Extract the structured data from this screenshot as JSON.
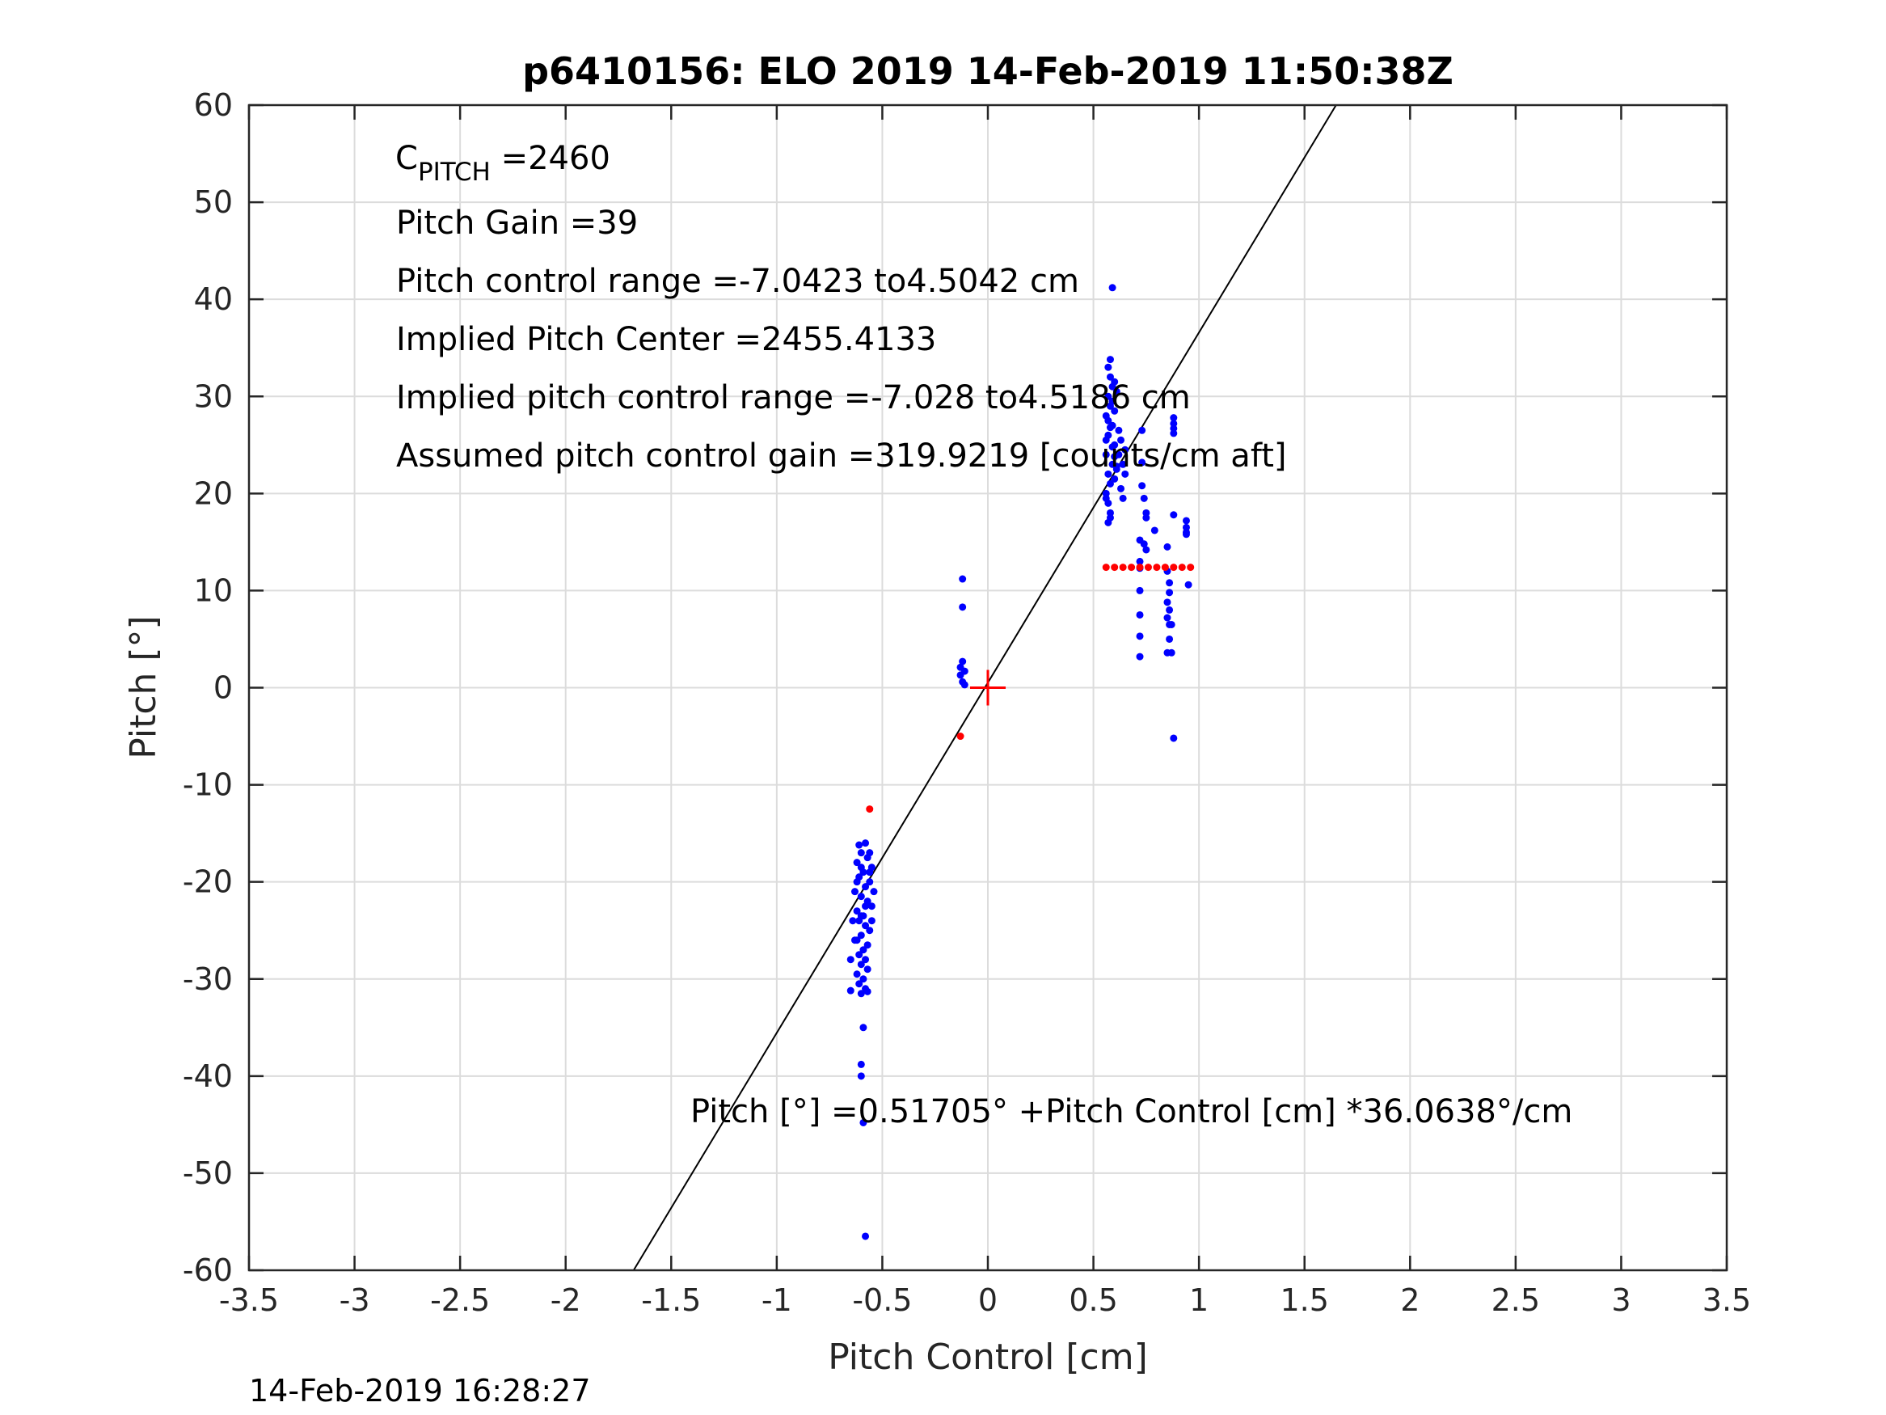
{
  "chart_data": {
    "type": "scatter",
    "title": "p6410156: ELO 2019 14-Feb-2019 11:50:38Z",
    "xlabel": "Pitch Control [cm]",
    "ylabel": "Pitch [°]",
    "xlim": [
      -3.5,
      3.5
    ],
    "ylim": [
      -60,
      60
    ],
    "xticks": [
      -3.5,
      -3,
      -2.5,
      -2,
      -1.5,
      -1,
      -0.5,
      0,
      0.5,
      1,
      1.5,
      2,
      2.5,
      3,
      3.5
    ],
    "xtick_labels": [
      "-3.5",
      "-3",
      "-2.5",
      "-2",
      "-1.5",
      "-1",
      "-0.5",
      "0",
      "0.5",
      "1",
      "1.5",
      "2",
      "2.5",
      "3",
      "3.5"
    ],
    "yticks": [
      -60,
      -50,
      -40,
      -30,
      -20,
      -10,
      0,
      10,
      20,
      30,
      40,
      50,
      60
    ],
    "ytick_labels": [
      "-60",
      "-50",
      "-40",
      "-30",
      "-20",
      "-10",
      "0",
      "10",
      "20",
      "30",
      "40",
      "50",
      "60"
    ],
    "grid": true,
    "colors": {
      "blue": "#0000ff",
      "red": "#ff0000",
      "line": "#000000"
    },
    "series": [
      {
        "color": "#0000ff",
        "marker": "dot",
        "points": [
          [
            -0.58,
            -16
          ],
          [
            -0.6,
            -17
          ],
          [
            -0.57,
            -17.5
          ],
          [
            -0.62,
            -18
          ],
          [
            -0.55,
            -18.5
          ],
          [
            -0.59,
            -19
          ],
          [
            -0.61,
            -19.5
          ],
          [
            -0.56,
            -20
          ],
          [
            -0.58,
            -20.5
          ],
          [
            -0.63,
            -21
          ],
          [
            -0.6,
            -21.5
          ],
          [
            -0.57,
            -22
          ],
          [
            -0.55,
            -22.5
          ],
          [
            -0.62,
            -23
          ],
          [
            -0.59,
            -23.5
          ],
          [
            -0.61,
            -24
          ],
          [
            -0.58,
            -24.5
          ],
          [
            -0.56,
            -25
          ],
          [
            -0.6,
            -25.5
          ],
          [
            -0.63,
            -26
          ],
          [
            -0.57,
            -26.5
          ],
          [
            -0.59,
            -27
          ],
          [
            -0.61,
            -27.5
          ],
          [
            -0.58,
            -28
          ],
          [
            -0.65,
            -28
          ],
          [
            -0.6,
            -28.5
          ],
          [
            -0.57,
            -29
          ],
          [
            -0.62,
            -29.5
          ],
          [
            -0.59,
            -30
          ],
          [
            -0.61,
            -30.5
          ],
          [
            -0.58,
            -31
          ],
          [
            -0.65,
            -31.2
          ],
          [
            -0.6,
            -31.5
          ],
          [
            -0.57,
            -31.3
          ],
          [
            -0.62,
            -20
          ],
          [
            -0.54,
            -21
          ],
          [
            -0.56,
            -19
          ],
          [
            -0.6,
            -18.5
          ],
          [
            -0.58,
            -22.5
          ],
          [
            -0.6,
            -23.5
          ],
          [
            -0.59,
            -35
          ],
          [
            -0.6,
            -38.8
          ],
          [
            -0.6,
            -40
          ],
          [
            -0.59,
            -44.8
          ],
          [
            -0.58,
            -56.5
          ],
          [
            -0.64,
            -24
          ],
          [
            -0.55,
            -24
          ],
          [
            -0.62,
            -26
          ],
          [
            -0.56,
            -17
          ],
          [
            -0.61,
            -16.2
          ],
          [
            -0.12,
            11.2
          ],
          [
            -0.12,
            8.3
          ],
          [
            -0.12,
            2.7
          ],
          [
            -0.13,
            2.1
          ],
          [
            -0.11,
            1.7
          ],
          [
            -0.13,
            1.3
          ],
          [
            -0.12,
            0.6
          ],
          [
            -0.11,
            0.3
          ],
          [
            0.56,
            20
          ],
          [
            0.58,
            21
          ],
          [
            0.57,
            22
          ],
          [
            0.59,
            23
          ],
          [
            0.56,
            24
          ],
          [
            0.6,
            25
          ],
          [
            0.57,
            26
          ],
          [
            0.59,
            27
          ],
          [
            0.56,
            28
          ],
          [
            0.58,
            29
          ],
          [
            0.57,
            30
          ],
          [
            0.59,
            31
          ],
          [
            0.58,
            32
          ],
          [
            0.57,
            33
          ],
          [
            0.58,
            33.8
          ],
          [
            0.6,
            31.5
          ],
          [
            0.61,
            30.5
          ],
          [
            0.56,
            19.5
          ],
          [
            0.57,
            19
          ],
          [
            0.58,
            18
          ],
          [
            0.58,
            17.5
          ],
          [
            0.57,
            17
          ],
          [
            0.6,
            21.5
          ],
          [
            0.61,
            22.5
          ],
          [
            0.62,
            24
          ],
          [
            0.63,
            25.5
          ],
          [
            0.64,
            23
          ],
          [
            0.65,
            22
          ],
          [
            0.63,
            20.5
          ],
          [
            0.64,
            19.5
          ],
          [
            0.65,
            24.5
          ],
          [
            0.62,
            26.5
          ],
          [
            0.6,
            28.5
          ],
          [
            0.59,
            29.5
          ],
          [
            0.56,
            25.5
          ],
          [
            0.57,
            27.5
          ],
          [
            0.58,
            26.8
          ],
          [
            0.59,
            24.8
          ],
          [
            0.6,
            23.8
          ],
          [
            0.61,
            22.8
          ],
          [
            0.59,
            41.2
          ],
          [
            0.73,
            26.5
          ],
          [
            0.73,
            23.2
          ],
          [
            0.73,
            20.8
          ],
          [
            0.74,
            19.5
          ],
          [
            0.75,
            18
          ],
          [
            0.75,
            17.5
          ],
          [
            0.79,
            16.2
          ],
          [
            0.72,
            15.2
          ],
          [
            0.74,
            14.8
          ],
          [
            0.75,
            14.2
          ],
          [
            0.72,
            13
          ],
          [
            0.72,
            12.3
          ],
          [
            0.72,
            10
          ],
          [
            0.72,
            7.5
          ],
          [
            0.72,
            5.3
          ],
          [
            0.72,
            3.2
          ],
          [
            0.85,
            14.5
          ],
          [
            0.85,
            12
          ],
          [
            0.86,
            10.8
          ],
          [
            0.86,
            9.8
          ],
          [
            0.85,
            8.8
          ],
          [
            0.86,
            8
          ],
          [
            0.85,
            7.2
          ],
          [
            0.86,
            6.5
          ],
          [
            0.87,
            6.5
          ],
          [
            0.86,
            5
          ],
          [
            0.85,
            3.6
          ],
          [
            0.87,
            3.6
          ],
          [
            0.88,
            -5.2
          ],
          [
            0.88,
            27.8
          ],
          [
            0.88,
            27.2
          ],
          [
            0.88,
            26.7
          ],
          [
            0.88,
            26.2
          ],
          [
            0.88,
            17.8
          ],
          [
            0.94,
            17.2
          ],
          [
            0.94,
            16.5
          ],
          [
            0.94,
            16
          ],
          [
            0.94,
            15.8
          ],
          [
            0.95,
            10.6
          ]
        ]
      },
      {
        "color": "#ff0000",
        "marker": "dot",
        "points": [
          [
            -0.56,
            -12.5
          ],
          [
            -0.13,
            -5
          ],
          [
            0.56,
            12.4
          ],
          [
            0.6,
            12.4
          ],
          [
            0.64,
            12.4
          ],
          [
            0.68,
            12.4
          ],
          [
            0.72,
            12.4
          ],
          [
            0.76,
            12.4
          ],
          [
            0.8,
            12.4
          ],
          [
            0.84,
            12.4
          ],
          [
            0.88,
            12.4
          ],
          [
            0.92,
            12.4
          ],
          [
            0.96,
            12.4
          ]
        ]
      }
    ],
    "center_marker": {
      "x": 0,
      "y": 0,
      "color": "#ff0000"
    },
    "fit_line": {
      "intercept": 0.51705,
      "slope": 36.0638
    },
    "annotations": [
      {
        "id": "cpitch",
        "main": "C",
        "sub": "PITCH",
        "rest": " =2460"
      },
      {
        "id": "gain",
        "text": "Pitch Gain =39"
      },
      {
        "id": "range",
        "text": "Pitch control range =-7.0423 to4.5042 cm"
      },
      {
        "id": "center",
        "text": "Implied Pitch Center =2455.4133"
      },
      {
        "id": "irange",
        "text": "Implied pitch control range =-7.028 to4.5186 cm"
      },
      {
        "id": "cgain",
        "text": "Assumed pitch control gain =319.9219 [counts/cm aft]"
      }
    ],
    "equation": "Pitch [°] =0.51705° +Pitch Control [cm] *36.0638°/cm",
    "footer_timestamp": "14-Feb-2019 16:28:27"
  }
}
